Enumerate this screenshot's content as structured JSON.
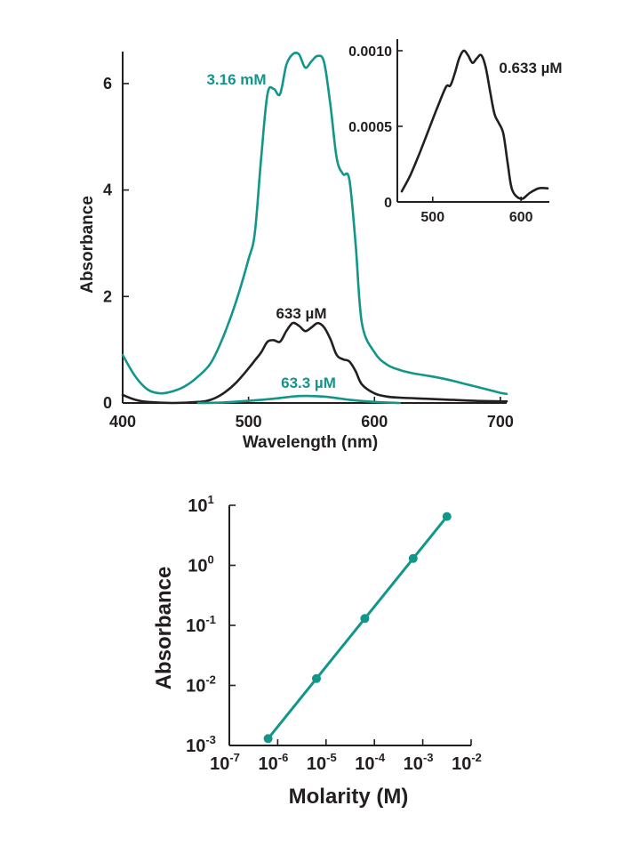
{
  "colors": {
    "teal": "#12968a",
    "black": "#231f20",
    "background": "#ffffff"
  },
  "chart_data": [
    {
      "type": "line",
      "title": "",
      "xlabel": "Wavelength (nm)",
      "ylabel": "Absorbance",
      "xlim": [
        400,
        705
      ],
      "ylim": [
        0,
        6.6
      ],
      "x_ticks": [
        400,
        500,
        600,
        700
      ],
      "y_ticks": [
        0,
        2,
        4,
        6
      ],
      "grid": false,
      "series": [
        {
          "name": "3.16 mM",
          "color": "teal",
          "x": [
            400,
            410,
            420,
            430,
            440,
            450,
            460,
            470,
            480,
            490,
            500,
            505,
            510,
            515,
            520,
            525,
            530,
            535,
            540,
            545,
            550,
            555,
            560,
            565,
            570,
            575,
            580,
            585,
            590,
            600,
            610,
            620,
            630,
            640,
            650,
            660,
            670,
            680,
            690,
            700,
            705
          ],
          "y": [
            0.9,
            0.5,
            0.25,
            0.18,
            0.22,
            0.32,
            0.5,
            0.75,
            1.25,
            1.9,
            2.7,
            3.2,
            4.6,
            5.8,
            5.9,
            5.8,
            6.35,
            6.55,
            6.55,
            6.3,
            6.42,
            6.52,
            6.4,
            5.6,
            4.6,
            4.3,
            4.2,
            3.0,
            1.5,
            0.95,
            0.72,
            0.62,
            0.56,
            0.52,
            0.48,
            0.43,
            0.37,
            0.31,
            0.25,
            0.19,
            0.17
          ]
        },
        {
          "name": "633 µM",
          "color": "black",
          "x": [
            400,
            410,
            420,
            440,
            460,
            470,
            480,
            490,
            500,
            505,
            510,
            515,
            520,
            525,
            530,
            535,
            540,
            545,
            550,
            555,
            560,
            565,
            570,
            575,
            580,
            585,
            590,
            600,
            610,
            620,
            640,
            660,
            680,
            700,
            705
          ],
          "y": [
            0.15,
            0.06,
            0.02,
            0.0,
            0.02,
            0.06,
            0.18,
            0.38,
            0.65,
            0.8,
            0.95,
            1.15,
            1.18,
            1.15,
            1.35,
            1.5,
            1.45,
            1.35,
            1.42,
            1.5,
            1.42,
            1.2,
            0.9,
            0.82,
            0.78,
            0.6,
            0.35,
            0.18,
            0.12,
            0.1,
            0.08,
            0.06,
            0.04,
            0.03,
            0.03
          ]
        },
        {
          "name": "63.3 µM",
          "color": "teal",
          "x": [
            460,
            480,
            500,
            520,
            540,
            560,
            580,
            600,
            620
          ],
          "y": [
            0.0,
            0.01,
            0.04,
            0.08,
            0.13,
            0.12,
            0.06,
            0.02,
            0.0
          ]
        }
      ],
      "annotations": [
        "3.16 mM",
        "633 µM",
        "63.3 µM"
      ]
    },
    {
      "type": "line",
      "title": "",
      "xlabel": "",
      "ylabel": "",
      "xlim": [
        460,
        632
      ],
      "ylim": [
        0,
        0.001
      ],
      "x_ticks": [
        500,
        600
      ],
      "y_ticks": [
        "0",
        "0.0005",
        "0.0010"
      ],
      "series": [
        {
          "name": "0.633 µM",
          "color": "black",
          "x": [
            465,
            475,
            485,
            495,
            505,
            515,
            520,
            525,
            530,
            535,
            540,
            545,
            550,
            555,
            560,
            565,
            570,
            575,
            580,
            585,
            590,
            600,
            610,
            620,
            630
          ],
          "y": [
            7e-05,
            0.00018,
            0.00032,
            0.00047,
            0.00062,
            0.00076,
            0.00077,
            0.00085,
            0.00095,
            0.001,
            0.00097,
            0.00092,
            0.00095,
            0.00097,
            0.00089,
            0.00073,
            0.00058,
            0.00052,
            0.00045,
            0.00025,
            8e-05,
            2e-05,
            6e-05,
            9e-05,
            9e-05
          ]
        }
      ],
      "annotations": [
        "0.633 µM"
      ]
    },
    {
      "type": "scatter",
      "title": "",
      "xlabel": "Molarity (M)",
      "ylabel": "Absorbance",
      "x_scale": "log",
      "y_scale": "log",
      "xlim": [
        1e-07,
        0.01
      ],
      "ylim": [
        0.001,
        10
      ],
      "x_ticks": [
        1e-07,
        1e-06,
        1e-05,
        0.0001,
        0.001,
        0.01
      ],
      "x_tick_labels": [
        {
          "base": "10",
          "exp": "-7"
        },
        {
          "base": "10",
          "exp": "-6"
        },
        {
          "base": "10",
          "exp": "-5"
        },
        {
          "base": "10",
          "exp": "-4"
        },
        {
          "base": "10",
          "exp": "-3"
        },
        {
          "base": "10",
          "exp": "-2"
        }
      ],
      "y_ticks": [
        0.001,
        0.01,
        0.1,
        1,
        10
      ],
      "y_tick_labels": [
        {
          "base": "10",
          "exp": "-3"
        },
        {
          "base": "10",
          "exp": "-2"
        },
        {
          "base": "10",
          "exp": "-1"
        },
        {
          "base": "10",
          "exp": "0"
        },
        {
          "base": "10",
          "exp": "1"
        }
      ],
      "series": [
        {
          "color": "teal",
          "x": [
            6.33e-07,
            6.33e-06,
            6.33e-05,
            0.000633,
            0.00316
          ],
          "y": [
            0.0013,
            0.013,
            0.13,
            1.3,
            6.5
          ],
          "fit_line": true
        }
      ]
    }
  ]
}
